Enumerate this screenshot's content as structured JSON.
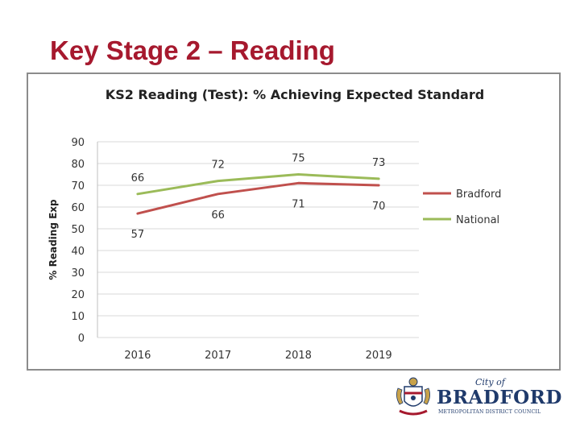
{
  "slide": {
    "title": "Key Stage 2 – Reading"
  },
  "chart_data": {
    "type": "line",
    "title": "KS2 Reading (Test): % Achieving Expected Standard",
    "ylabel": "% Reading Exp",
    "xlabel": "",
    "categories": [
      "2016",
      "2017",
      "2018",
      "2019"
    ],
    "ylim": [
      0,
      90
    ],
    "yticks": [
      0,
      10,
      20,
      30,
      40,
      50,
      60,
      70,
      80,
      90
    ],
    "grid": true,
    "legend": "right",
    "series": [
      {
        "name": "Bradford",
        "values": [
          57,
          66,
          71,
          70
        ],
        "color": "#c0504d"
      },
      {
        "name": "National",
        "values": [
          66,
          72,
          75,
          73
        ],
        "color": "#9bbb59"
      }
    ]
  },
  "logo": {
    "city_of": "City of",
    "name": "BRADFORD",
    "council": "METROPOLITAN DISTRICT COUNCIL",
    "icon": "coat-of-arms-icon",
    "color": "#1f3a6b"
  }
}
